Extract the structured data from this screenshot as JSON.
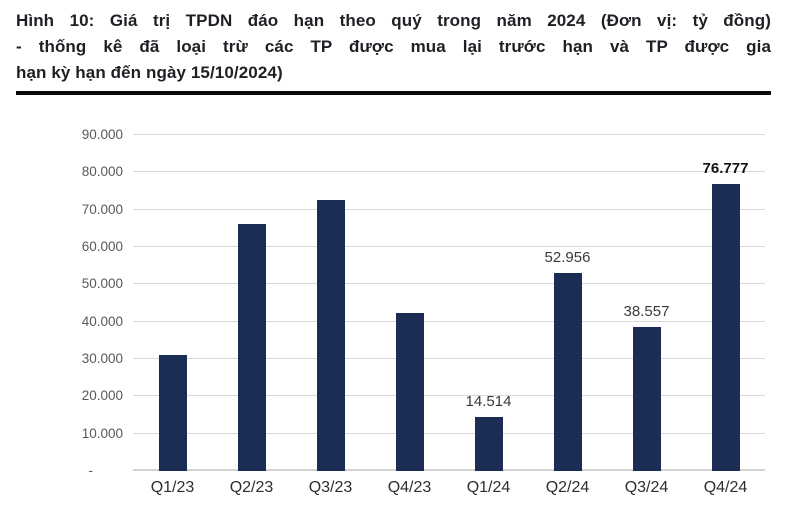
{
  "title": {
    "full_text": "Hình 10: Giá trị TPDN đáo hạn theo quý trong năm 2024 (Đơn vị: tỷ đồng) - thống kê đã loại trừ các TP được mua lại trước hạn và TP được gia hạn kỳ hạn đến ngày 15/10/2024)",
    "lines": [
      "Hình 10: Giá trị TPDN đáo hạn theo quý trong năm 2024 (Đơn vị: tỷ đồng)",
      "- thống kê đã loại trừ các TP được mua lại trước hạn và TP được gia",
      "hạn kỳ hạn đến ngày 15/10/2024)"
    ]
  },
  "colors": {
    "bar": "#1b2c55",
    "gridline": "#d9d9d9",
    "axis_baseline": "#d2d2d2",
    "y_tick_text": "#595959",
    "x_tick_text": "#2e2e2e",
    "data_label_text": "#3a3a3a",
    "bold_data_label_text": "#121212",
    "caption_text": "#1e2025",
    "caption_rule": "#0a0a0a",
    "background": "#ffffff"
  },
  "chart_data": {
    "type": "bar",
    "title": "Hình 10: Giá trị TPDN đáo hạn theo quý trong năm 2024 (Đơn vị: tỷ đồng) - thống kê đã loại trừ các TP được mua lại trước hạn và TP được gia hạn kỳ hạn đến ngày 15/10/2024)",
    "xlabel": "",
    "ylabel": "",
    "unit": "tỷ đồng",
    "categories": [
      "Q1/23",
      "Q2/23",
      "Q3/23",
      "Q4/23",
      "Q1/24",
      "Q2/24",
      "Q3/24",
      "Q4/24"
    ],
    "values": [
      31200,
      66100,
      72500,
      42200,
      14514,
      52956,
      38557,
      76777
    ],
    "data_labels": [
      "",
      "",
      "",
      "",
      "14.514",
      "52.956",
      "38.557",
      "76.777"
    ],
    "bold_label_index": 7,
    "y_ticks": [
      "90.000",
      "80.000",
      "70.000",
      "60.000",
      "50.000",
      "40.000",
      "30.000",
      "20.000",
      "10.000",
      "-"
    ],
    "y_tick_values": [
      90000,
      80000,
      70000,
      60000,
      50000,
      40000,
      30000,
      20000,
      10000,
      0
    ],
    "ylim": [
      0,
      90000
    ],
    "grid": true,
    "legend": "none"
  }
}
